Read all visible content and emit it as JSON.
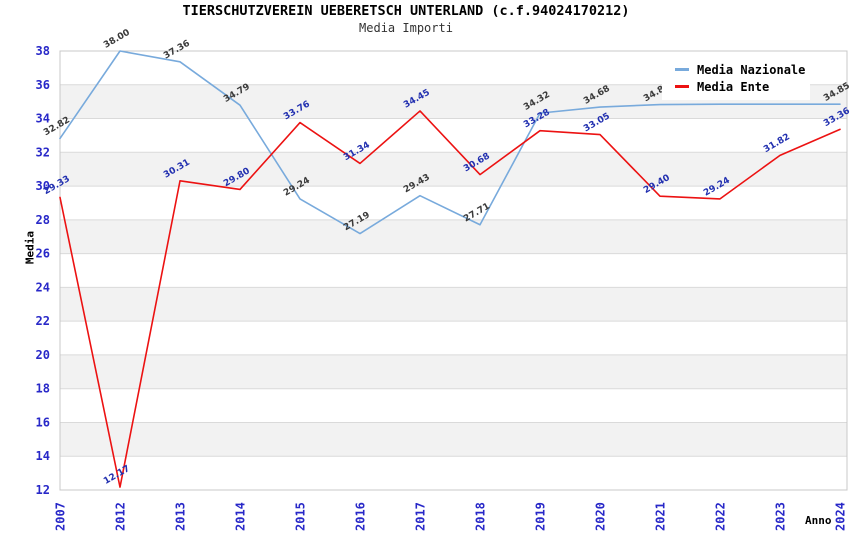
{
  "chart_data": {
    "type": "line",
    "title": "TIERSCHUTZVEREIN UEBERETSCH UNTERLAND (c.f.94024170212)",
    "subtitle": "Media Importi",
    "xlabel": "Anno",
    "ylabel": "Media",
    "categories": [
      "2007",
      "2012",
      "2013",
      "2014",
      "2015",
      "2016",
      "2017",
      "2018",
      "2019",
      "2020",
      "2021",
      "2022",
      "2023",
      "2024"
    ],
    "series": [
      {
        "name": "Media Nazionale",
        "color": "#78aadc",
        "label_color": "#3a3a3a",
        "values": [
          32.82,
          38.0,
          37.36,
          34.79,
          29.24,
          27.19,
          29.43,
          27.71,
          34.32,
          34.68,
          34.83,
          34.85,
          34.85,
          34.85
        ],
        "label_hidden_indexes": [
          11,
          12
        ]
      },
      {
        "name": "Media Ente",
        "color": "#ec1212",
        "label_color": "#2230b0",
        "values": [
          29.33,
          12.17,
          30.31,
          29.8,
          33.76,
          31.34,
          34.45,
          30.68,
          33.28,
          33.05,
          29.4,
          29.24,
          31.82,
          33.36
        ],
        "label_hidden_indexes": []
      }
    ],
    "ylim": [
      12,
      38
    ],
    "ytick_step": 2,
    "yticks": [
      12,
      14,
      16,
      18,
      20,
      22,
      24,
      26,
      28,
      30,
      32,
      34,
      36,
      38
    ],
    "grid": "horizontal-bands",
    "legend_position": "top-right"
  },
  "style": {
    "tick_color": "#2828c8",
    "band_color": "#f2f2f2",
    "grid_color": "#dadada",
    "border_color": "#c8c8c8",
    "background": "#ffffff",
    "legend_background": "#ffffff",
    "title_color": "#000000",
    "subtitle_color": "#333333"
  }
}
